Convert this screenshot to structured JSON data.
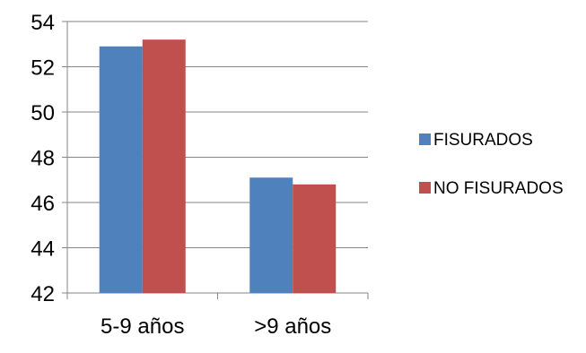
{
  "chart_data": {
    "type": "bar",
    "categories": [
      "5-9 años",
      ">9 años"
    ],
    "series": [
      {
        "name": "FISURADOS",
        "values": [
          52.9,
          47.1
        ],
        "color": "#4F81BD"
      },
      {
        "name": "NO FISURADOS",
        "values": [
          53.2,
          46.8
        ],
        "color": "#C0504D"
      }
    ],
    "title": "",
    "xlabel": "",
    "ylabel": "",
    "ylim": [
      42,
      54
    ],
    "yticks": [
      "42",
      "44",
      "46",
      "48",
      "50",
      "52",
      "54"
    ],
    "grid": true,
    "legend_position": "right"
  }
}
